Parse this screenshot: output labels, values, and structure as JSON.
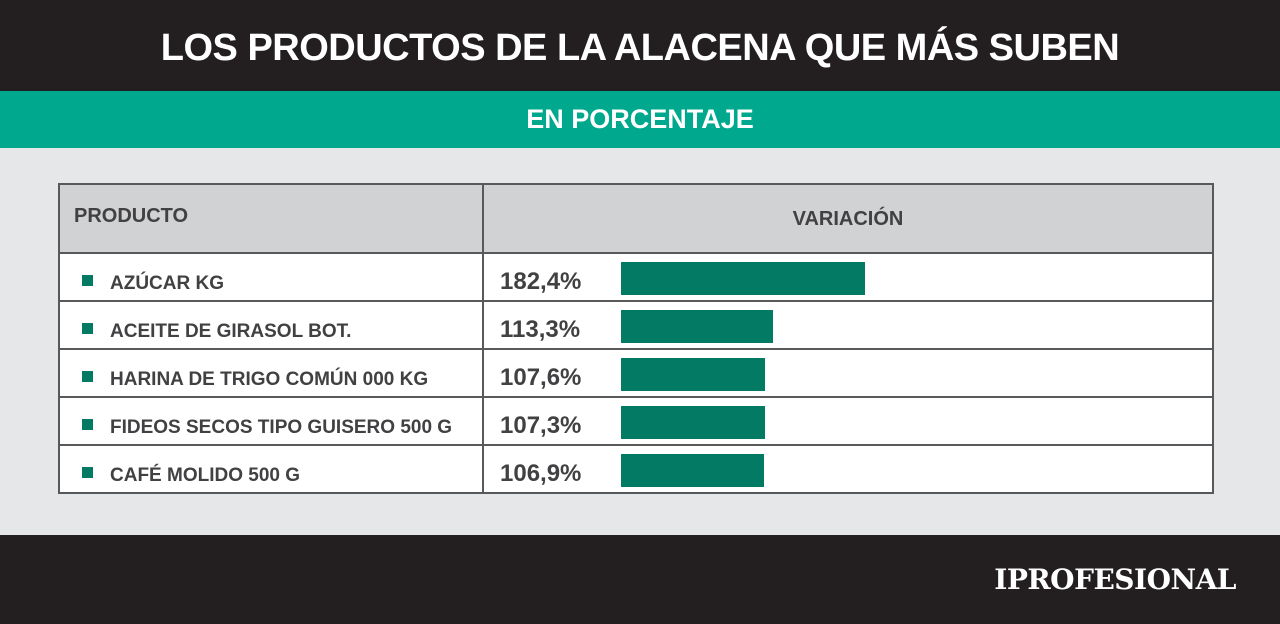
{
  "header": {
    "title": "LOS PRODUCTOS DE LA ALACENA QUE MÁS SUBEN"
  },
  "subheader": {
    "subtitle": "EN PORCENTAJE"
  },
  "table": {
    "col_product": "PRODUCTO",
    "col_variation": "VARIACIÓN"
  },
  "footer": {
    "brand": "IPROFESIONAL"
  },
  "colors": {
    "accent": "#00a88e",
    "bar": "#027a64",
    "dark": "#231f20"
  },
  "chart_data": {
    "type": "bar",
    "title": "LOS PRODUCTOS DE LA ALACENA QUE MÁS SUBEN",
    "subtitle": "EN PORCENTAJE",
    "categories": [
      "AZÚCAR KG",
      "ACEITE DE GIRASOL BOT.",
      "HARINA DE TRIGO COMÚN 000 KG",
      "FIDEOS SECOS TIPO GUISERO 500 G",
      "CAFÉ MOLIDO 500 G"
    ],
    "values": [
      182.4,
      113.3,
      107.6,
      107.3,
      106.9
    ],
    "value_labels": [
      "182,4%",
      "113,3%",
      "107,6%",
      "107,3%",
      "106,9%"
    ],
    "xlabel": "PRODUCTO",
    "ylabel": "VARIACIÓN",
    "orientation": "horizontal",
    "ylim": [
      0,
      182.4
    ],
    "grid": false
  }
}
